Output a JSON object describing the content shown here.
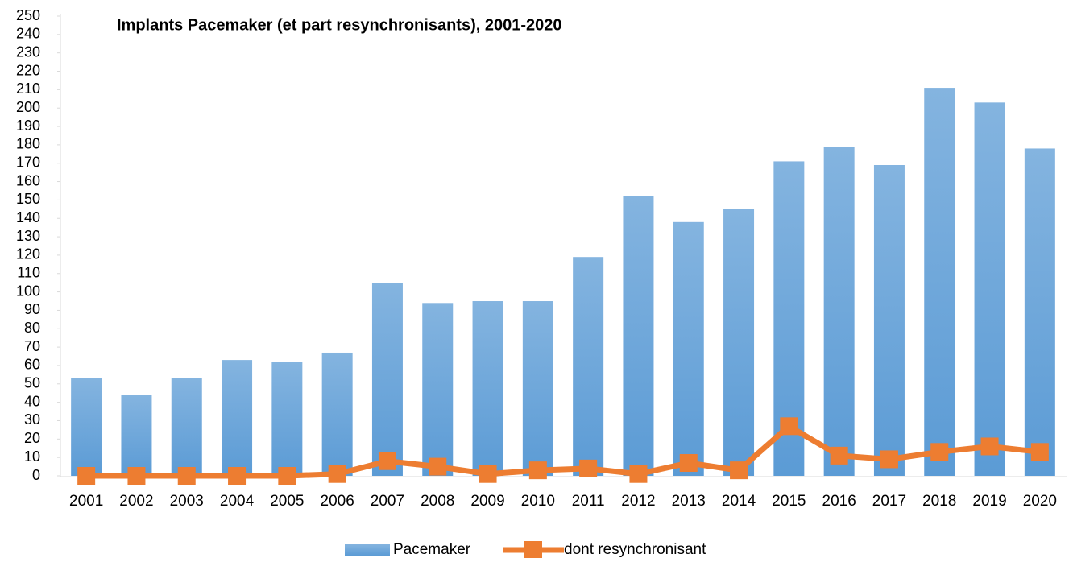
{
  "chart_data": {
    "type": "bar_line",
    "title": "Implants Pacemaker (et part resynchronisants), 2001-2020",
    "categories": [
      "2001",
      "2002",
      "2003",
      "2004",
      "2005",
      "2006",
      "2007",
      "2008",
      "2009",
      "2010",
      "2011",
      "2012",
      "2013",
      "2014",
      "2015",
      "2016",
      "2017",
      "2018",
      "2019",
      "2020"
    ],
    "series": [
      {
        "name": "Pacemaker",
        "type": "bar",
        "color": "#5b9bd5",
        "values": [
          53,
          44,
          53,
          63,
          62,
          67,
          105,
          94,
          95,
          95,
          119,
          152,
          138,
          145,
          171,
          179,
          169,
          211,
          203,
          178
        ]
      },
      {
        "name": "dont resynchronisant",
        "type": "line",
        "color": "#ed7d31",
        "values": [
          0,
          0,
          0,
          0,
          0,
          1,
          8,
          5,
          1,
          3,
          4,
          1,
          7,
          3,
          27,
          11,
          9,
          13,
          16,
          13
        ]
      }
    ],
    "ylim": [
      0,
      250
    ],
    "yticks": [
      0,
      10,
      20,
      30,
      40,
      50,
      60,
      70,
      80,
      90,
      100,
      110,
      120,
      130,
      140,
      150,
      160,
      170,
      180,
      190,
      200,
      210,
      220,
      230,
      240,
      250
    ],
    "grid": false,
    "legend": "bottom"
  }
}
